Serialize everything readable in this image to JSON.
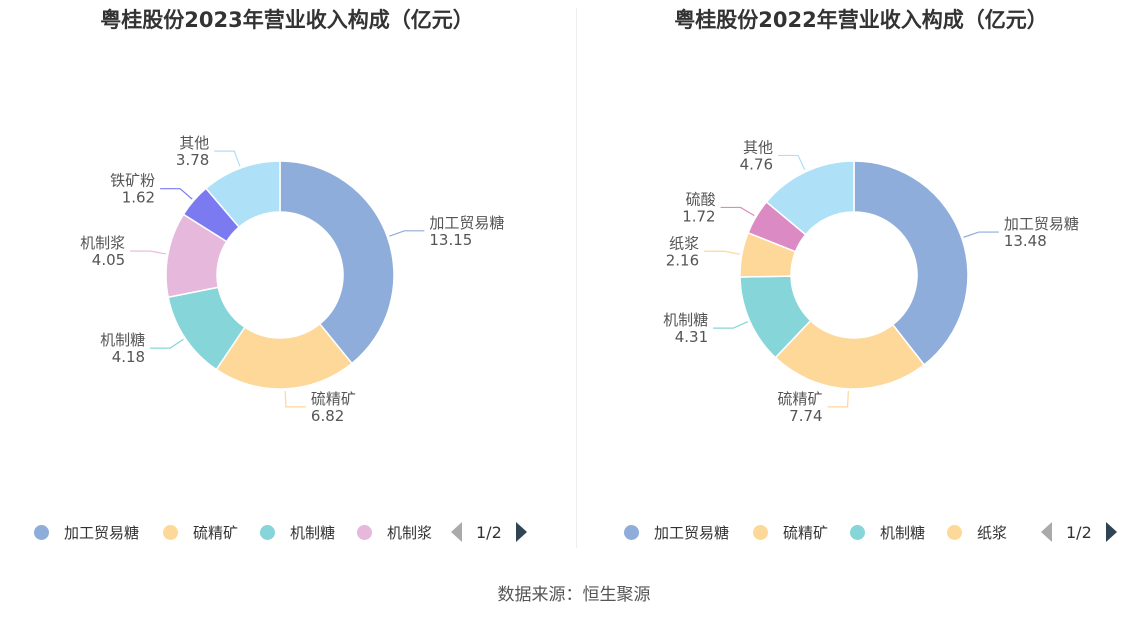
{
  "chart_data": [
    {
      "type": "pie",
      "title": "粤桂股份2023年营业收入构成（亿元）",
      "categories": [
        "加工贸易糖",
        "硫精矿",
        "机制糖",
        "机制浆",
        "铁矿粉",
        "其他"
      ],
      "values": [
        13.15,
        6.82,
        4.18,
        4.05,
        1.62,
        3.78
      ],
      "value_labels": [
        "13.15",
        "6.82",
        "4.18",
        "4.05",
        "1.62",
        "3.78"
      ],
      "colors": [
        "#8eaddb",
        "#fdd899",
        "#86d5d8",
        "#e6b8db",
        "#7b7af0",
        "#aee0f7"
      ],
      "legend": {
        "position": "bottom",
        "items": [
          "加工贸易糖",
          "硫精矿",
          "机制糖",
          "机制浆"
        ],
        "page": "1/2"
      }
    },
    {
      "type": "pie",
      "title": "粤桂股份2022年营业收入构成（亿元）",
      "categories": [
        "加工贸易糖",
        "硫精矿",
        "机制糖",
        "纸浆",
        "硫酸",
        "其他"
      ],
      "values": [
        13.48,
        7.74,
        4.31,
        2.16,
        1.72,
        4.76
      ],
      "value_labels": [
        "13.48",
        "7.74",
        "4.31",
        "2.16",
        "1.72",
        "4.76"
      ],
      "colors": [
        "#8eaddb",
        "#fdd899",
        "#86d5d8",
        "#fdd899",
        "#dc8ac3",
        "#aee0f7"
      ],
      "legend": {
        "position": "bottom",
        "items": [
          "加工贸易糖",
          "硫精矿",
          "机制糖",
          "纸浆"
        ],
        "page": "1/2"
      }
    }
  ],
  "source": "数据来源：恒生聚源"
}
